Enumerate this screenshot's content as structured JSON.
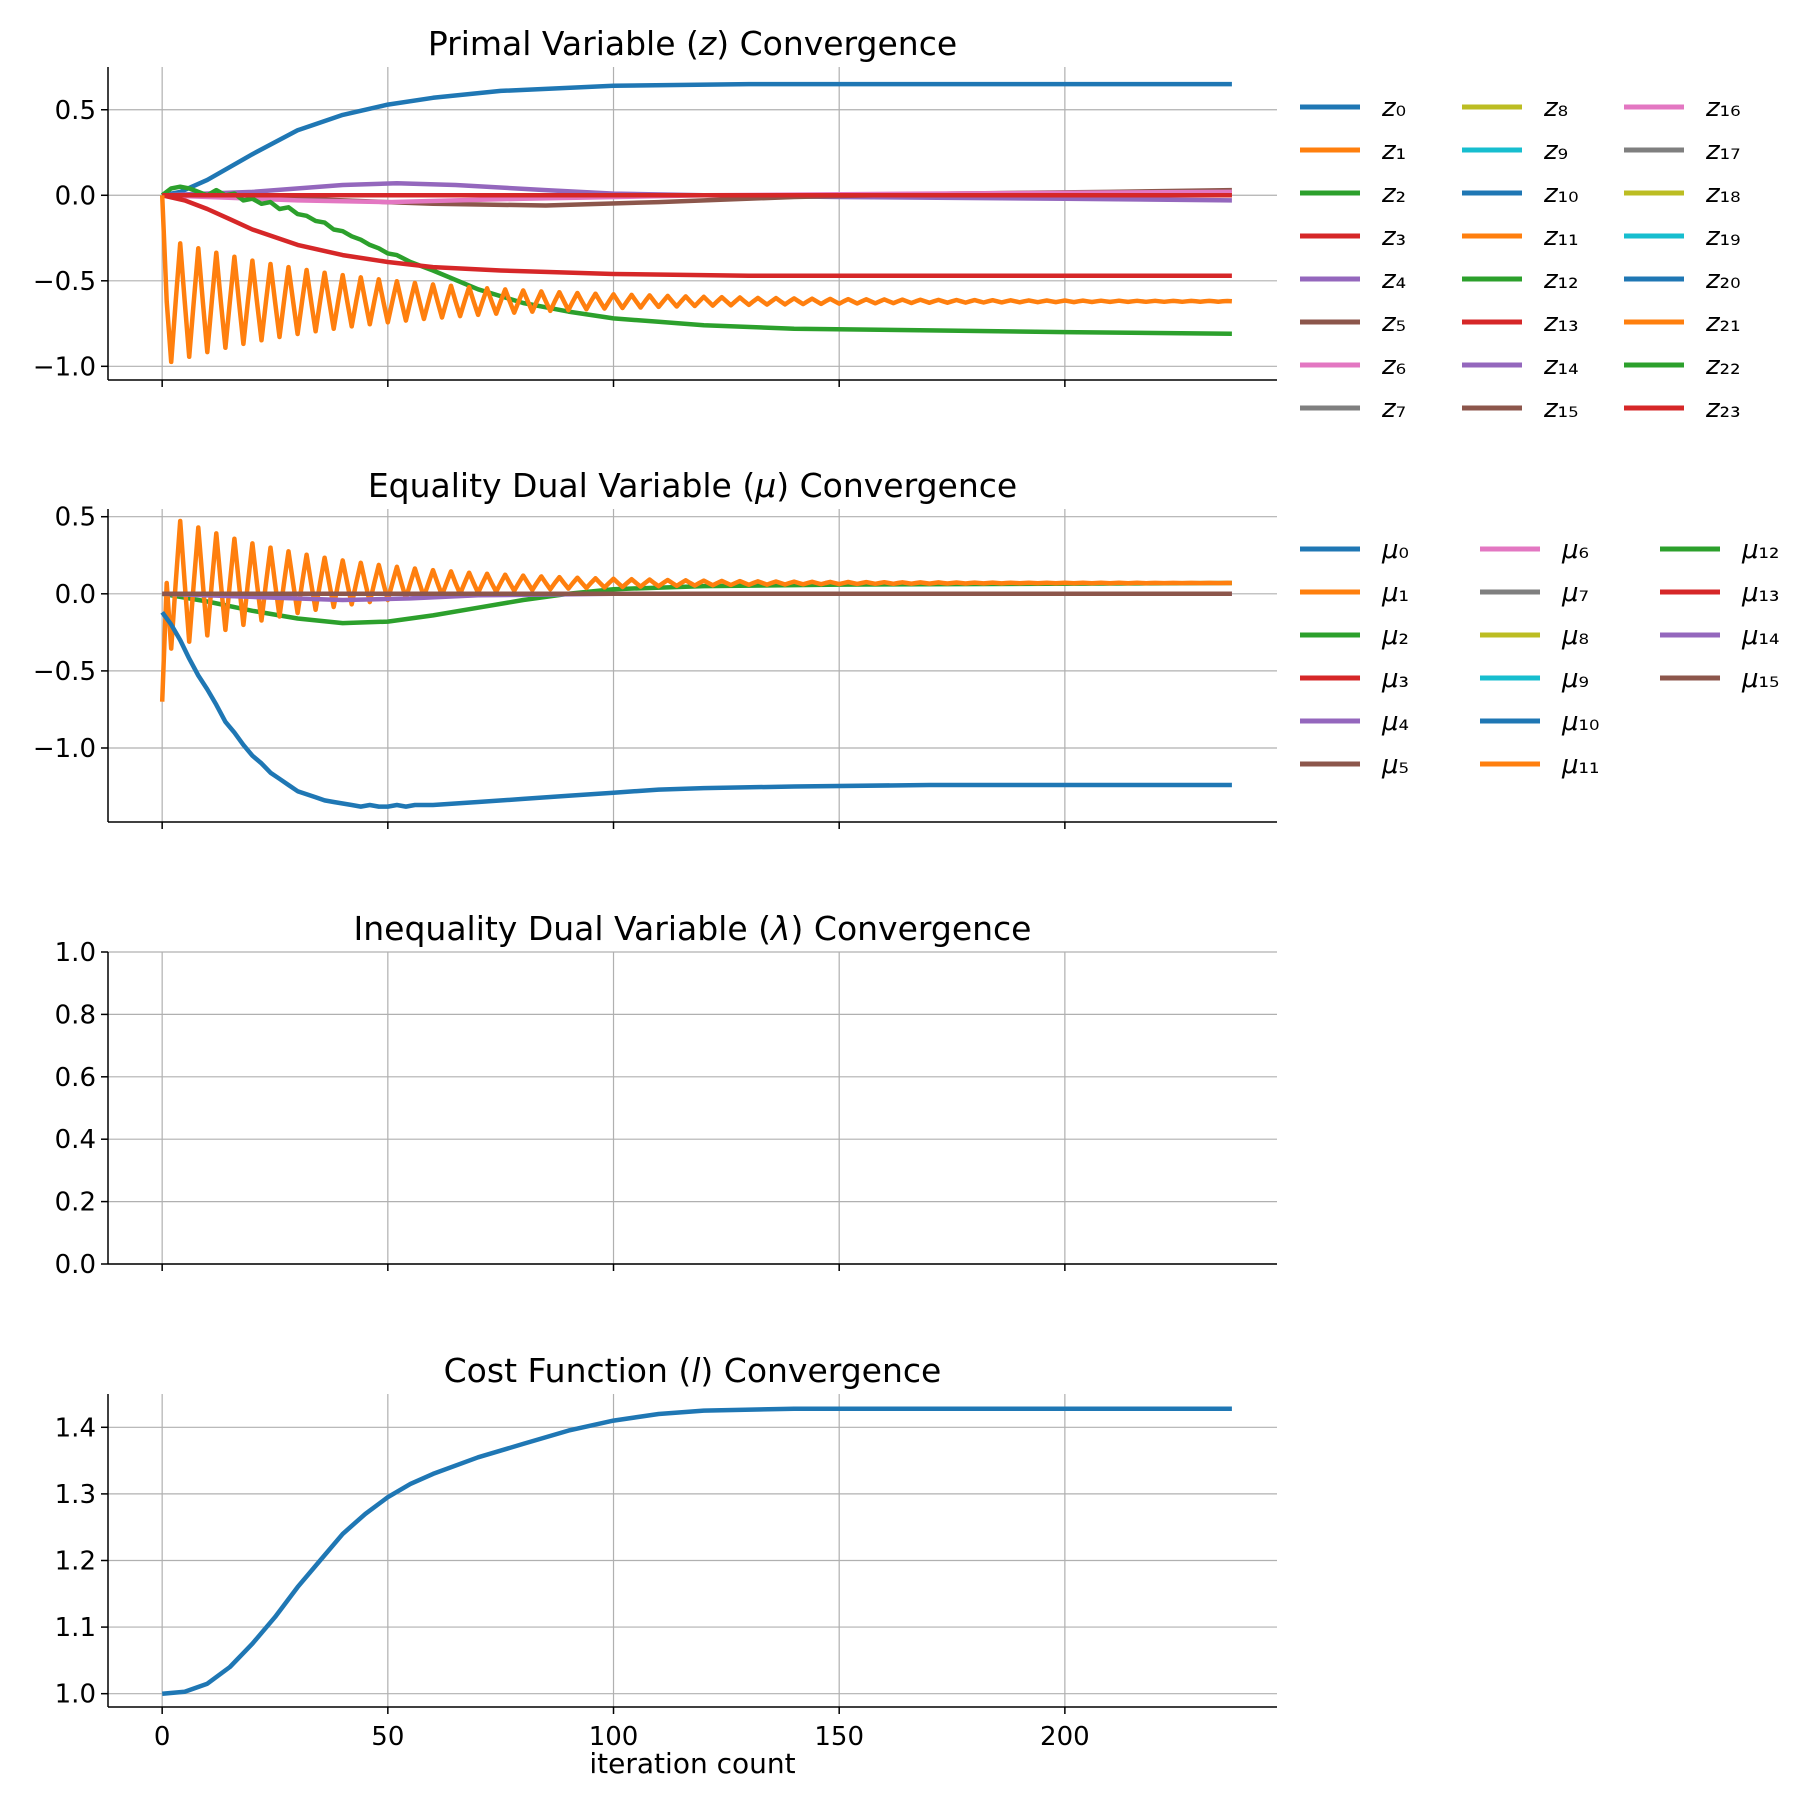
{
  "colors": [
    "#1f77b4",
    "#ff7f0e",
    "#2ca02c",
    "#d62728",
    "#9467bd",
    "#8c564b",
    "#e377c2",
    "#7f7f7f",
    "#bcbd22",
    "#17becf"
  ],
  "xlabel": "iteration count",
  "xticks": [
    "0",
    "50",
    "100",
    "150",
    "200"
  ],
  "chart_data": [
    {
      "type": "line",
      "title": "Primal Variable (z) Convergence",
      "title_parts": [
        "Primal Variable (",
        "z",
        ") Convergence"
      ],
      "legend_symbol": "z",
      "legend_count": 24,
      "legend_position": "outside-right",
      "grid": true,
      "xlim": [
        -12,
        247
      ],
      "ylim": [
        -1.08,
        0.75
      ],
      "yticks": [
        0.5,
        0.0,
        -0.5,
        -1.0
      ],
      "ytick_labels": [
        "0.5",
        "0.0",
        "−0.5",
        "−1.0"
      ],
      "series": [
        {
          "name": "z₀",
          "pts": [
            [
              0,
              0
            ],
            [
              4,
              0.02
            ],
            [
              10,
              0.09
            ],
            [
              20,
              0.24
            ],
            [
              30,
              0.38
            ],
            [
              40,
              0.47
            ],
            [
              50,
              0.53
            ],
            [
              60,
              0.57
            ],
            [
              75,
              0.61
            ],
            [
              100,
              0.64
            ],
            [
              130,
              0.65
            ],
            [
              237,
              0.65
            ]
          ]
        },
        {
          "name": "z₄",
          "pts": [
            [
              0,
              0
            ],
            [
              20,
              0.02
            ],
            [
              40,
              0.06
            ],
            [
              52,
              0.07
            ],
            [
              65,
              0.06
            ],
            [
              85,
              0.03
            ],
            [
              100,
              0.01
            ],
            [
              120,
              0
            ],
            [
              150,
              -0.01
            ],
            [
              200,
              -0.02
            ],
            [
              237,
              -0.03
            ]
          ]
        },
        {
          "name": "z₅",
          "pts": [
            [
              0,
              0
            ],
            [
              20,
              -0.01
            ],
            [
              40,
              -0.03
            ],
            [
              60,
              -0.05
            ],
            [
              85,
              -0.06
            ],
            [
              110,
              -0.04
            ],
            [
              140,
              -0.01
            ],
            [
              175,
              0.01
            ],
            [
              210,
              0.02
            ],
            [
              237,
              0.03
            ]
          ]
        },
        {
          "name": "z₆",
          "pts": [
            [
              0,
              0
            ],
            [
              30,
              -0.03
            ],
            [
              50,
              -0.04
            ],
            [
              80,
              -0.02
            ],
            [
              120,
              0
            ],
            [
              170,
              0.01
            ],
            [
              237,
              0.02
            ]
          ]
        },
        {
          "name": "z₇",
          "pts": [
            [
              0,
              0
            ],
            [
              237,
              0
            ]
          ]
        },
        {
          "name": "z₂",
          "pts": [
            [
              0,
              0
            ],
            [
              2,
              0.04
            ],
            [
              4,
              0.05
            ],
            [
              6,
              0.04
            ],
            [
              8,
              0.02
            ],
            [
              10,
              0
            ],
            [
              12,
              0.03
            ],
            [
              14,
              0
            ],
            [
              16,
              0.01
            ],
            [
              18,
              -0.03
            ],
            [
              20,
              -0.02
            ],
            [
              22,
              -0.05
            ],
            [
              24,
              -0.04
            ],
            [
              26,
              -0.08
            ],
            [
              28,
              -0.07
            ],
            [
              30,
              -0.11
            ],
            [
              32,
              -0.12
            ],
            [
              34,
              -0.15
            ],
            [
              36,
              -0.16
            ],
            [
              38,
              -0.2
            ],
            [
              40,
              -0.21
            ],
            [
              42,
              -0.24
            ],
            [
              44,
              -0.26
            ],
            [
              46,
              -0.29
            ],
            [
              48,
              -0.31
            ],
            [
              50,
              -0.34
            ],
            [
              52,
              -0.35
            ],
            [
              55,
              -0.39
            ],
            [
              60,
              -0.44
            ],
            [
              70,
              -0.55
            ],
            [
              80,
              -0.63
            ],
            [
              90,
              -0.68
            ],
            [
              100,
              -0.72
            ],
            [
              110,
              -0.74
            ],
            [
              120,
              -0.76
            ],
            [
              140,
              -0.78
            ],
            [
              170,
              -0.79
            ],
            [
              200,
              -0.8
            ],
            [
              237,
              -0.81
            ]
          ]
        },
        {
          "name": "z₃",
          "pts": [
            [
              0,
              0
            ],
            [
              5,
              -0.03
            ],
            [
              10,
              -0.08
            ],
            [
              15,
              -0.14
            ],
            [
              20,
              -0.2
            ],
            [
              30,
              -0.29
            ],
            [
              40,
              -0.35
            ],
            [
              50,
              -0.39
            ],
            [
              60,
              -0.42
            ],
            [
              75,
              -0.44
            ],
            [
              100,
              -0.46
            ],
            [
              130,
              -0.47
            ],
            [
              237,
              -0.47
            ]
          ]
        },
        {
          "name": "z₁₃",
          "pts": [
            [
              0,
              0
            ],
            [
              237,
              0
            ]
          ]
        },
        {
          "name": "z₁",
          "osc": {
            "x0": 0,
            "x1": 237,
            "final": -0.62,
            "amp0": 0.37,
            "decay": 0.022,
            "period": 4.0,
            "start": 0.0
          }
        }
      ]
    },
    {
      "type": "line",
      "title": "Equality Dual Variable (μ) Convergence",
      "title_parts": [
        "Equality Dual Variable (",
        "μ",
        ") Convergence"
      ],
      "legend_symbol": "μ",
      "legend_count": 16,
      "legend_position": "outside-right",
      "grid": true,
      "xlim": [
        -12,
        247
      ],
      "ylim": [
        -1.48,
        0.55
      ],
      "yticks": [
        0.5,
        0.0,
        -0.5,
        -1.0
      ],
      "ytick_labels": [
        "0.5",
        "0.0",
        "−0.5",
        "−1.0"
      ],
      "series": [
        {
          "name": "μ₂",
          "pts": [
            [
              0,
              0
            ],
            [
              10,
              -0.05
            ],
            [
              20,
              -0.11
            ],
            [
              30,
              -0.16
            ],
            [
              40,
              -0.19
            ],
            [
              50,
              -0.18
            ],
            [
              60,
              -0.14
            ],
            [
              70,
              -0.09
            ],
            [
              80,
              -0.04
            ],
            [
              90,
              0
            ],
            [
              100,
              0.03
            ],
            [
              120,
              0.05
            ],
            [
              150,
              0.06
            ],
            [
              237,
              0.07
            ]
          ]
        },
        {
          "name": "μ₁",
          "osc": {
            "x0": 0,
            "x1": 237,
            "final": 0.07,
            "amp0": 0.45,
            "decay": 0.028,
            "period": 4.0,
            "start": -0.7
          }
        },
        {
          "name": "μ₄",
          "pts": [
            [
              0,
              0
            ],
            [
              20,
              -0.02
            ],
            [
              40,
              -0.04
            ],
            [
              55,
              -0.03
            ],
            [
              70,
              -0.01
            ],
            [
              100,
              0
            ],
            [
              237,
              0
            ]
          ]
        },
        {
          "name": "μ₅",
          "pts": [
            [
              0,
              0
            ],
            [
              237,
              0
            ]
          ]
        },
        {
          "name": "μ₀",
          "pts": [
            [
              0,
              -0.12
            ],
            [
              2,
              -0.2
            ],
            [
              4,
              -0.3
            ],
            [
              6,
              -0.42
            ],
            [
              8,
              -0.53
            ],
            [
              10,
              -0.62
            ],
            [
              12,
              -0.72
            ],
            [
              14,
              -0.83
            ],
            [
              16,
              -0.9
            ],
            [
              18,
              -0.98
            ],
            [
              20,
              -1.05
            ],
            [
              22,
              -1.1
            ],
            [
              24,
              -1.16
            ],
            [
              26,
              -1.2
            ],
            [
              28,
              -1.24
            ],
            [
              30,
              -1.28
            ],
            [
              32,
              -1.3
            ],
            [
              34,
              -1.32
            ],
            [
              36,
              -1.34
            ],
            [
              38,
              -1.35
            ],
            [
              40,
              -1.36
            ],
            [
              42,
              -1.37
            ],
            [
              44,
              -1.38
            ],
            [
              46,
              -1.37
            ],
            [
              48,
              -1.38
            ],
            [
              50,
              -1.38
            ],
            [
              52,
              -1.37
            ],
            [
              54,
              -1.38
            ],
            [
              56,
              -1.37
            ],
            [
              60,
              -1.37
            ],
            [
              65,
              -1.36
            ],
            [
              70,
              -1.35
            ],
            [
              80,
              -1.33
            ],
            [
              90,
              -1.31
            ],
            [
              100,
              -1.29
            ],
            [
              110,
              -1.27
            ],
            [
              120,
              -1.26
            ],
            [
              140,
              -1.25
            ],
            [
              170,
              -1.24
            ],
            [
              237,
              -1.24
            ]
          ]
        }
      ]
    },
    {
      "type": "line",
      "title": "Inequality Dual Variable (λ) Convergence",
      "title_parts": [
        "Inequality Dual Variable (",
        "λ",
        ") Convergence"
      ],
      "legend_count": 0,
      "grid": true,
      "xlim": [
        -12,
        247
      ],
      "ylim": [
        0.0,
        1.0
      ],
      "yticks": [
        1.0,
        0.8,
        0.6,
        0.4,
        0.2,
        0.0
      ],
      "ytick_labels": [
        "1.0",
        "0.8",
        "0.6",
        "0.4",
        "0.2",
        "0.0"
      ],
      "series": []
    },
    {
      "type": "line",
      "title": "Cost Function (l) Convergence",
      "title_parts": [
        "Cost Function (",
        "l",
        ") Convergence"
      ],
      "legend_count": 0,
      "grid": true,
      "xlim": [
        -12,
        247
      ],
      "ylim": [
        0.98,
        1.45
      ],
      "yticks": [
        1.4,
        1.3,
        1.2,
        1.1,
        1.0
      ],
      "ytick_labels": [
        "1.4",
        "1.3",
        "1.2",
        "1.1",
        "1.0"
      ],
      "series": [
        {
          "name": "l",
          "pts": [
            [
              0,
              1.0
            ],
            [
              5,
              1.003
            ],
            [
              10,
              1.015
            ],
            [
              15,
              1.04
            ],
            [
              20,
              1.075
            ],
            [
              25,
              1.115
            ],
            [
              30,
              1.16
            ],
            [
              35,
              1.2
            ],
            [
              40,
              1.24
            ],
            [
              45,
              1.27
            ],
            [
              50,
              1.295
            ],
            [
              55,
              1.315
            ],
            [
              60,
              1.33
            ],
            [
              70,
              1.355
            ],
            [
              80,
              1.375
            ],
            [
              90,
              1.395
            ],
            [
              100,
              1.41
            ],
            [
              110,
              1.42
            ],
            [
              120,
              1.425
            ],
            [
              140,
              1.428
            ],
            [
              237,
              1.428
            ]
          ]
        }
      ]
    }
  ]
}
